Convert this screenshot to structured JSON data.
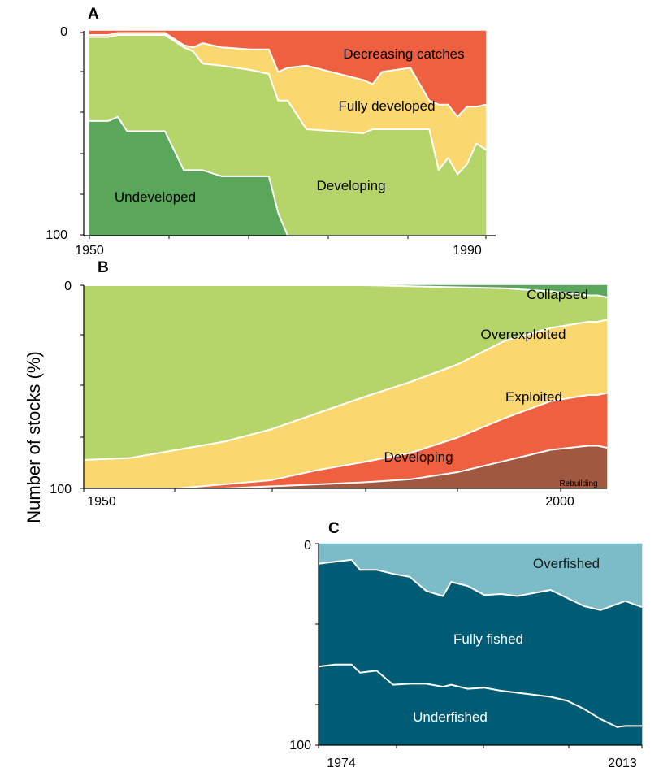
{
  "figure": {
    "ylabel": "Number of stocks (%)"
  },
  "chart_data": [
    {
      "panel": "A",
      "type": "area",
      "stacked": true,
      "x": [
        1950,
        1952,
        1953,
        1954,
        1958,
        1960,
        1961,
        1962,
        1964,
        1967,
        1969,
        1970,
        1971,
        1973,
        1979,
        1980,
        1981,
        1984,
        1986,
        1987,
        1988,
        1989,
        1990,
        1991,
        1992
      ],
      "xlim": [
        1950,
        1992
      ],
      "ylim": [
        0,
        100
      ],
      "x_ticks": [
        "1950",
        "1990"
      ],
      "y_ticks": [
        "0",
        "100"
      ],
      "series": [
        {
          "name": "Undeveloped",
          "color": "#5aa65a",
          "values": [
            56,
            56,
            58,
            51,
            51,
            32,
            32,
            32,
            29,
            29,
            29,
            11,
            0,
            0,
            0,
            0,
            0,
            0,
            0,
            0,
            0,
            0,
            0,
            0,
            0
          ]
        },
        {
          "name": "Developing",
          "color": "#b5d56a",
          "values": [
            41,
            41,
            40,
            47,
            47,
            60,
            58,
            52,
            54,
            52,
            50,
            55,
            66,
            52,
            50,
            52,
            52,
            52,
            52,
            32,
            38,
            30,
            35,
            45,
            42
          ]
        },
        {
          "name": "Fully developed",
          "color": "#fbd86f",
          "values": [
            1,
            1,
            1,
            1,
            1,
            1,
            2,
            10,
            9,
            10,
            12,
            14,
            16,
            31,
            26,
            22,
            28,
            30,
            14,
            32,
            26,
            28,
            28,
            18,
            22
          ]
        },
        {
          "name": "Decreasing catches",
          "color": "#ef6040",
          "values": [
            2,
            2,
            1,
            1,
            1,
            7,
            8,
            6,
            8,
            9,
            9,
            20,
            18,
            17,
            24,
            26,
            20,
            18,
            34,
            36,
            36,
            42,
            37,
            37,
            36
          ]
        }
      ]
    },
    {
      "panel": "B",
      "type": "area",
      "stacked": true,
      "x": [
        1950,
        1955,
        1960,
        1965,
        1970,
        1975,
        1980,
        1985,
        1990,
        1995,
        2000,
        2004,
        2005,
        2006
      ],
      "xlim": [
        1950,
        2006
      ],
      "ylim": [
        0,
        100
      ],
      "y_inverted": true,
      "x_ticks": [
        "1950",
        "2000"
      ],
      "y_ticks": [
        "0",
        "100"
      ],
      "series": [
        {
          "name": "Rebuilding",
          "color": "#5aa65a",
          "values": [
            0,
            0,
            0,
            0,
            0,
            0,
            0,
            0.5,
            1,
            1.5,
            3,
            5,
            5,
            6
          ]
        },
        {
          "name": "Developing",
          "color": "#b5d56a",
          "values": [
            86,
            85,
            81,
            77,
            71,
            63,
            55,
            47,
            38,
            26,
            18,
            13,
            13,
            11
          ]
        },
        {
          "name": "Exploited",
          "color": "#fbd86f",
          "values": [
            14,
            15,
            19,
            21,
            25,
            28,
            32,
            35,
            36,
            38,
            36,
            36,
            36,
            36
          ]
        },
        {
          "name": "Overexploited",
          "color": "#ef6040",
          "values": [
            0,
            0,
            0,
            2,
            3,
            7,
            10,
            13,
            17,
            21,
            24,
            25,
            25,
            27
          ]
        },
        {
          "name": "Collapsed",
          "color": "#a15840",
          "values": [
            0,
            0,
            0,
            0,
            1,
            2,
            3,
            4.5,
            8,
            13.5,
            19,
            21,
            21,
            20
          ]
        }
      ]
    },
    {
      "panel": "C",
      "type": "area",
      "stacked": true,
      "x": [
        1974,
        1976,
        1978,
        1979,
        1981,
        1983,
        1985,
        1987,
        1989,
        1990,
        1992,
        1994,
        1996,
        1998,
        2002,
        2004,
        2006,
        2008,
        2010,
        2011,
        2013
      ],
      "xlim": [
        1974,
        2013
      ],
      "ylim": [
        0,
        100
      ],
      "x_ticks": [
        "1974",
        "2013"
      ],
      "y_ticks": [
        "0",
        "100"
      ],
      "series": [
        {
          "name": "Underfished",
          "color": "#005b75",
          "values": [
            39,
            40,
            40,
            36,
            37,
            30,
            30.5,
            30.5,
            29,
            30,
            28,
            28.5,
            27,
            26,
            24,
            22,
            18,
            13,
            9,
            9.5,
            9.5
          ]
        },
        {
          "name": "Fully fished",
          "color": "#005b75",
          "values": [
            51,
            51,
            52,
            51,
            50,
            55,
            53,
            46,
            45,
            51,
            51,
            46,
            48,
            48,
            53,
            51,
            51,
            54,
            61,
            62,
            59
          ]
        },
        {
          "name": "Overfished",
          "color": "#7bbcc8",
          "values": [
            10,
            9,
            8,
            13,
            13,
            15,
            16.5,
            23.5,
            26,
            19,
            21,
            25.5,
            25,
            26,
            23,
            27,
            31,
            33,
            30,
            28.5,
            31.5
          ]
        }
      ]
    }
  ]
}
